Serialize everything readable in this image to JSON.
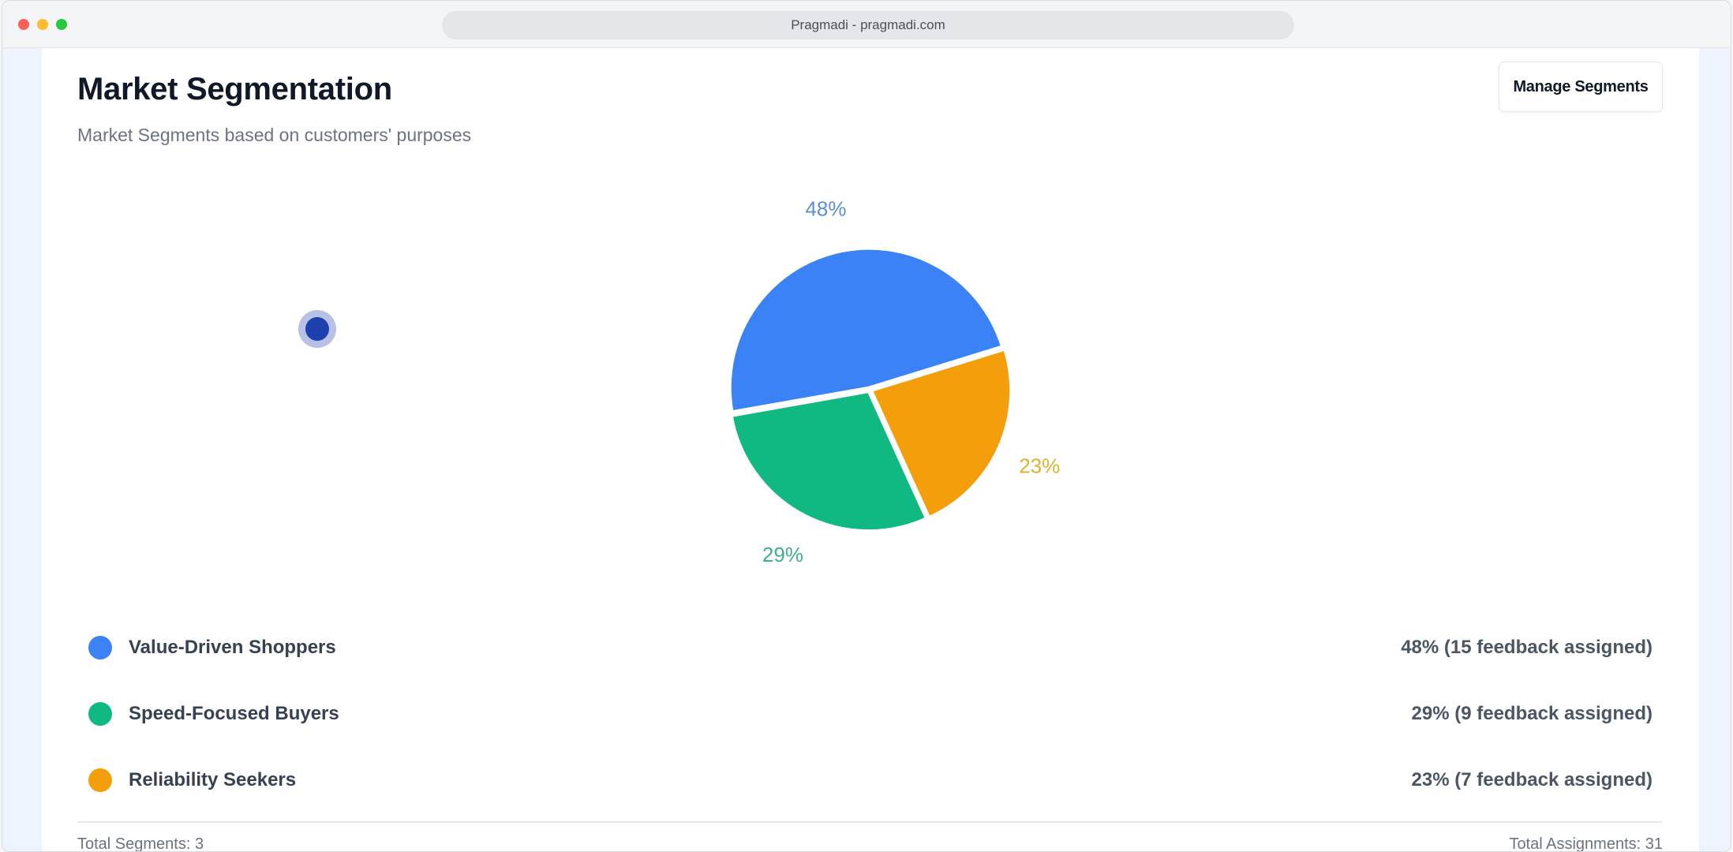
{
  "browser": {
    "url_text": "Pragmadi - pragmadi.com"
  },
  "header": {
    "title": "Market Segmentation",
    "subtitle": "Market Segments based on customers' purposes",
    "manage_button_label": "Manage Segments"
  },
  "chart_data": {
    "type": "pie",
    "slices": [
      {
        "name": "Value-Driven Shoppers",
        "value": 48,
        "label": "48%",
        "color": "#3b82f6"
      },
      {
        "name": "Reliability Seekers",
        "value": 23,
        "label": "23%",
        "color": "#f59e0b"
      },
      {
        "name": "Speed-Focused Buyers",
        "value": 29,
        "label": "29%",
        "color": "#10b981"
      }
    ],
    "label_colors": [
      "#5b8fd6",
      "#e0b030",
      "#3fae8a"
    ]
  },
  "legend": {
    "items": [
      {
        "name": "Value-Driven Shoppers",
        "value_text": "48% (15 feedback assigned)",
        "color": "#3b82f6"
      },
      {
        "name": "Speed-Focused Buyers",
        "value_text": "29% (9 feedback assigned)",
        "color": "#10b981"
      },
      {
        "name": "Reliability Seekers",
        "value_text": "23% (7 feedback assigned)",
        "color": "#f59e0b"
      }
    ]
  },
  "footer": {
    "total_segments": "Total Segments: 3",
    "total_assignments": "Total Assignments: 31"
  }
}
